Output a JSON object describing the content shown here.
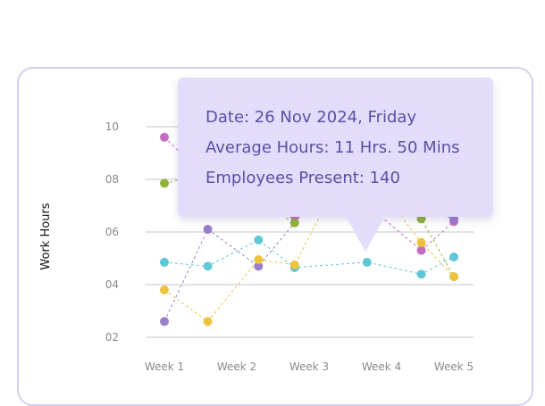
{
  "tooltip": {
    "date": "Date: 26 Nov 2024, Friday",
    "average": "Average Hours: 11 Hrs. 50 Mins",
    "employees": "Employees Present: 140"
  },
  "chart_data": {
    "type": "scatter",
    "ylabel": "Work Hours",
    "categories": [
      "Week 1",
      "Week 2",
      "Week 3",
      "Week 4",
      "Week 5"
    ],
    "y_ticks": [
      "10",
      "08",
      "06",
      "04",
      "02"
    ],
    "ylim": [
      1.4,
      10
    ],
    "grid": true,
    "series": [
      {
        "color": "#c46bc2",
        "x": [
          1,
          1.6,
          2.8,
          3.6,
          3.9,
          4.55,
          5
        ],
        "y": [
          9.6,
          8.0,
          6.6,
          9.0,
          6.8,
          5.3,
          6.4
        ]
      },
      {
        "color": "#9a7ec9",
        "x": [
          1,
          1.6,
          2.3,
          3.6,
          4.55,
          5
        ],
        "y": [
          2.6,
          6.1,
          4.7,
          9.0,
          6.8,
          6.5
        ]
      },
      {
        "color": "#8fb33a",
        "x": [
          1,
          1.6,
          2.8,
          3.6,
          4.55,
          5
        ],
        "y": [
          7.85,
          8.2,
          6.35,
          9.0,
          6.5,
          4.3
        ]
      },
      {
        "color": "#5ec8d6",
        "x": [
          1,
          1.6,
          2.3,
          2.8,
          3.8,
          4.55,
          5
        ],
        "y": [
          4.85,
          4.7,
          5.7,
          4.65,
          4.85,
          4.4,
          5.05
        ]
      },
      {
        "color": "#efc23e",
        "x": [
          1,
          1.6,
          2.3,
          2.8,
          3.6,
          4.55,
          5
        ],
        "y": [
          3.8,
          2.6,
          4.95,
          4.75,
          9.0,
          5.6,
          4.3
        ]
      }
    ]
  }
}
